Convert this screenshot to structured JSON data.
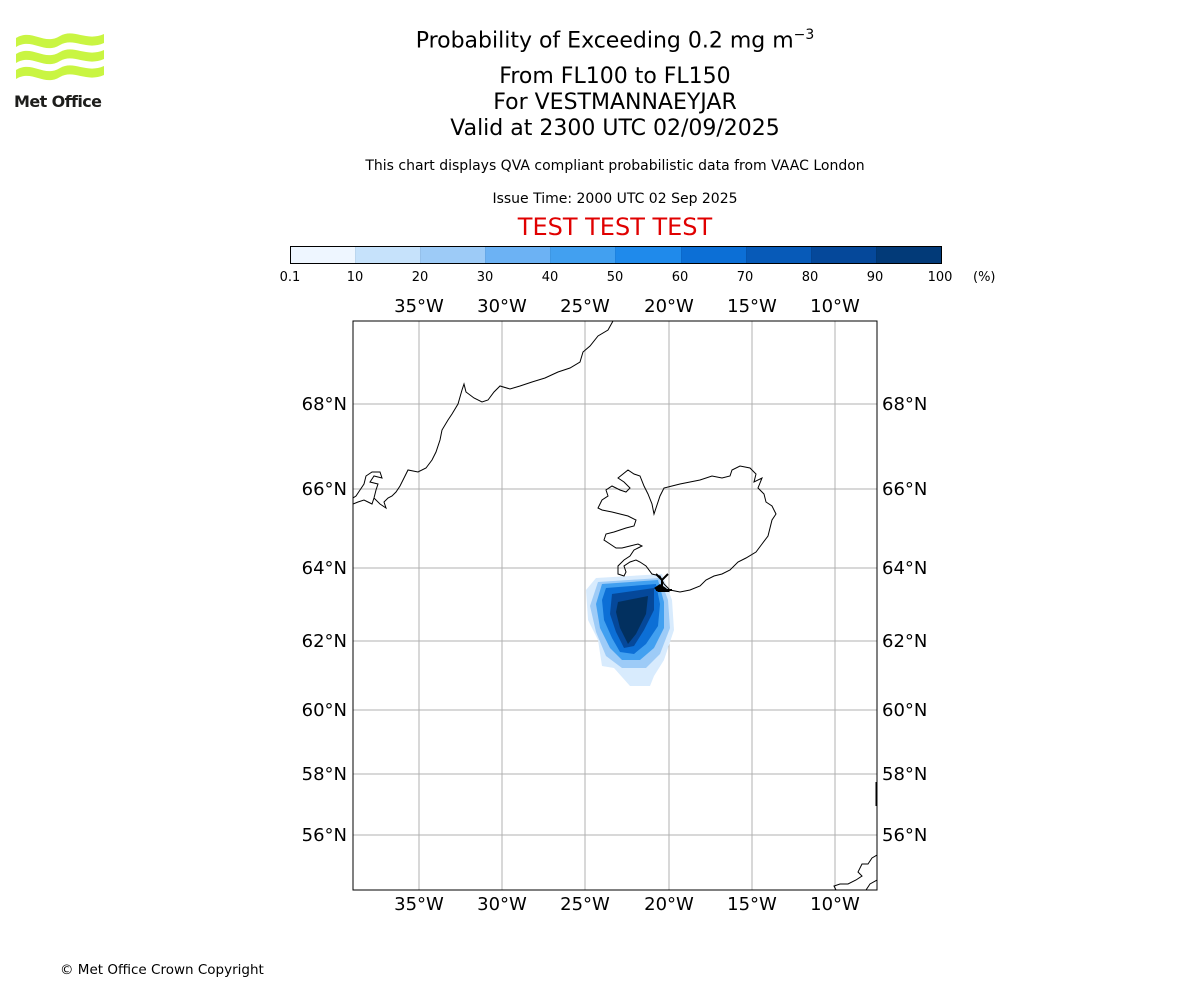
{
  "logo": {
    "name": "Met Office",
    "color": "#c9f542"
  },
  "header": {
    "title_main": "Probability of Exceeding 0.2 mg m",
    "title_sup": "−3",
    "level_range": "From FL100 to FL150",
    "location": "For VESTMANNAEYJAR",
    "valid_time": "Valid at 2300 UTC 02/09/2025",
    "description": "This chart displays QVA compliant probabilistic data from VAAC London",
    "issue_time": "Issue Time: 2000 UTC 02 Sep 2025",
    "test_banner": "TEST TEST TEST"
  },
  "colorbar": {
    "ticks": [
      "0.1",
      "10",
      "20",
      "30",
      "40",
      "50",
      "60",
      "70",
      "80",
      "90",
      "100"
    ],
    "unit": "(%)",
    "colors": [
      "#eef6ff",
      "#c6e2fb",
      "#9dcbf7",
      "#6cb2f4",
      "#42a0f0",
      "#1f8aeb",
      "#0c6fd6",
      "#075ab8",
      "#05489a",
      "#023a78"
    ]
  },
  "map": {
    "longitude_labels": [
      "35°W",
      "30°W",
      "25°W",
      "20°W",
      "15°W",
      "10°W"
    ],
    "latitude_labels": [
      "68°N",
      "66°N",
      "64°N",
      "62°N",
      "60°N",
      "58°N",
      "56°N"
    ],
    "grid": true,
    "volcano_marker": "black triangle near south coast of Iceland"
  },
  "footer": {
    "copyright": "© Met Office Crown Copyright"
  }
}
